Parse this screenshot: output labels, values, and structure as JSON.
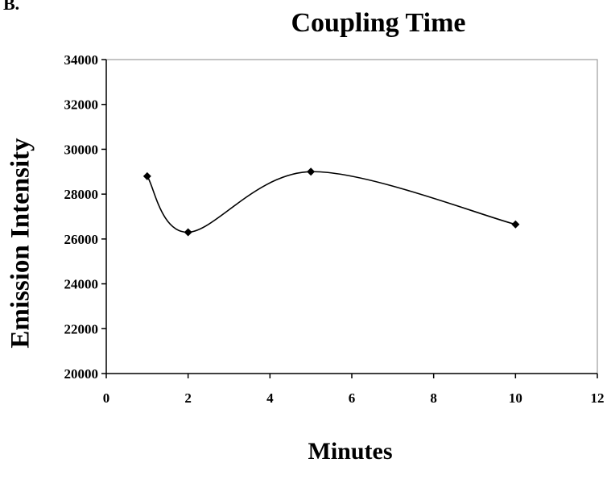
{
  "panel_label": "B.",
  "chart_data": {
    "type": "line",
    "title": "Coupling Time",
    "xlabel": "Minutes",
    "ylabel": "Emission Intensity",
    "xlim": [
      0,
      12
    ],
    "ylim": [
      20000,
      34000
    ],
    "x_ticks": [
      0,
      2,
      4,
      6,
      8,
      10,
      12
    ],
    "y_ticks": [
      20000,
      22000,
      24000,
      26000,
      28000,
      30000,
      32000,
      34000
    ],
    "grid": false,
    "legend": "none",
    "smooth": true,
    "series": [
      {
        "x": [
          1,
          2,
          5,
          10
        ],
        "y": [
          28800,
          26300,
          29000,
          26650
        ],
        "marker": "diamond",
        "color": "#000000"
      }
    ]
  }
}
